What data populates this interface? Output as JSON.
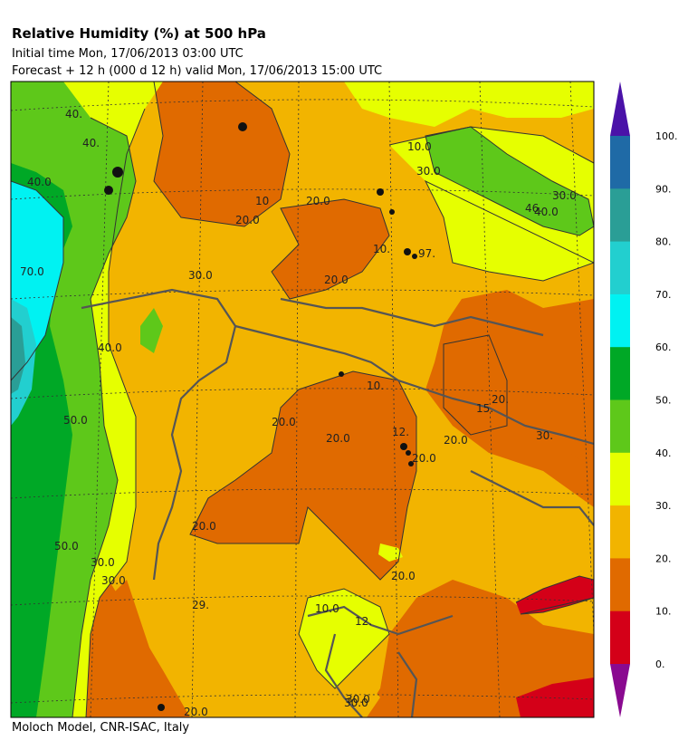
{
  "header": {
    "title": "Relative Humidity (%) at 500 hPa",
    "initial_time": "Initial time  Mon, 17/06/2013  03:00 UTC",
    "forecast": "Forecast  +  12 h  (000 d 12 h)  valid Mon, 17/06/2013 15:00 UTC"
  },
  "footer": "Moloch Model, CNR-ISAC, Italy",
  "colorbar": {
    "ticks": [
      "100.",
      "90.",
      "80.",
      "70.",
      "60.",
      "50.",
      "40.",
      "30.",
      "20.",
      "10.",
      "0."
    ],
    "colors": [
      "#4a12a8",
      "#1f6aa6",
      "#2a9e96",
      "#22cfcf",
      "#00f2f2",
      "#00a826",
      "#5ec81a",
      "#e6ff00",
      "#f2b400",
      "#e06a00",
      "#d40018",
      "#8a0a90"
    ]
  },
  "contour_labels": [
    "40.",
    "40.",
    "40.0",
    "70.0",
    "40.0",
    "50.0",
    "50.0",
    "30.0",
    "30.0",
    "30.0",
    "30.0",
    "30.0",
    "20.0",
    "10",
    "20.0",
    "20.0",
    "10.",
    "97.",
    "20.0",
    "10.0",
    "30.0",
    "40.0",
    "46.",
    "20.0",
    "20.0",
    "20.0",
    "12.",
    "15.",
    "20.",
    "20.0",
    "30.",
    "20.0",
    "29.",
    "20.0",
    "10.0",
    "12.",
    "30.0",
    "10."
  ]
}
